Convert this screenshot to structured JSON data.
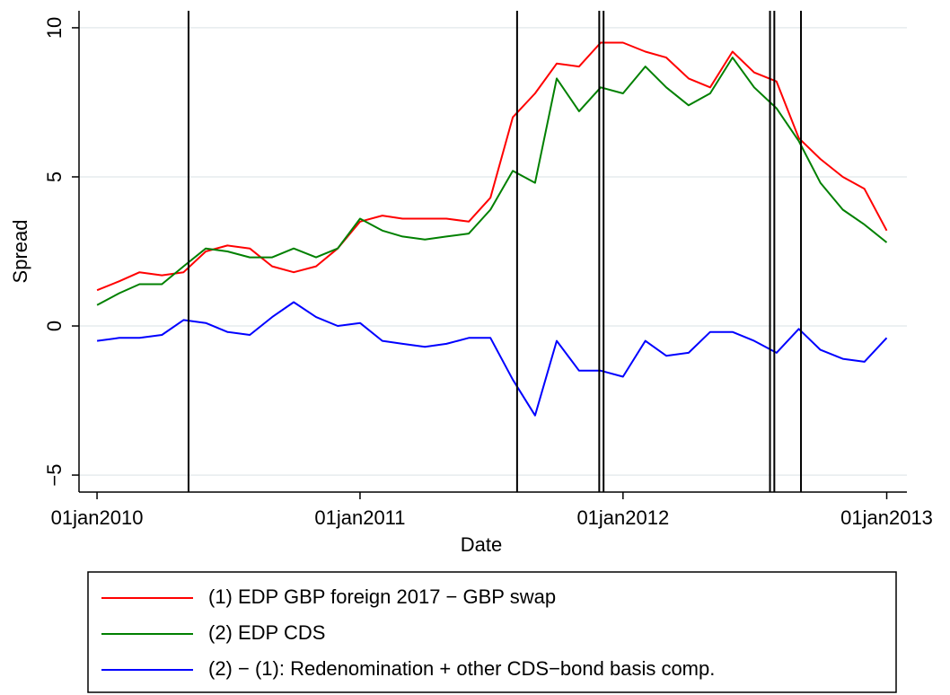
{
  "chart_data": {
    "type": "line",
    "x_label": "Date",
    "y_label": "Spread",
    "x": [
      "2010-01-01",
      "2010-02-01",
      "2010-03-01",
      "2010-04-01",
      "2010-05-01",
      "2010-06-01",
      "2010-07-01",
      "2010-08-01",
      "2010-09-01",
      "2010-10-01",
      "2010-11-01",
      "2010-12-01",
      "2011-01-01",
      "2011-02-01",
      "2011-03-01",
      "2011-04-01",
      "2011-05-01",
      "2011-06-01",
      "2011-07-01",
      "2011-08-01",
      "2011-09-01",
      "2011-10-01",
      "2011-11-01",
      "2011-12-01",
      "2012-01-01",
      "2012-02-01",
      "2012-03-01",
      "2012-04-01",
      "2012-05-01",
      "2012-06-01",
      "2012-07-01",
      "2012-08-01",
      "2012-09-01",
      "2012-10-01",
      "2012-11-01",
      "2012-12-01",
      "2013-01-01"
    ],
    "series": [
      {
        "name": "(1) EDP GBP foreign 2017 − GBP swap",
        "color": "#ff0000",
        "values": [
          1.2,
          1.5,
          1.8,
          1.7,
          1.8,
          2.5,
          2.7,
          2.6,
          2.0,
          1.8,
          2.0,
          2.6,
          3.5,
          3.7,
          3.6,
          3.6,
          3.6,
          3.5,
          4.3,
          7.0,
          7.8,
          8.8,
          8.7,
          9.5,
          9.5,
          9.2,
          9.0,
          8.3,
          8.0,
          9.2,
          8.5,
          8.2,
          6.3,
          5.6,
          5.0,
          4.6,
          3.2
        ]
      },
      {
        "name": "(2) EDP CDS",
        "color": "#008000",
        "values": [
          0.7,
          1.1,
          1.4,
          1.4,
          2.0,
          2.6,
          2.5,
          2.3,
          2.3,
          2.6,
          2.3,
          2.6,
          3.6,
          3.2,
          3.0,
          2.9,
          3.0,
          3.1,
          3.9,
          5.2,
          4.8,
          8.3,
          7.2,
          8.0,
          7.8,
          8.7,
          8.0,
          7.4,
          7.8,
          9.0,
          8.0,
          7.3,
          6.2,
          4.8,
          3.9,
          3.4,
          2.8
        ]
      },
      {
        "name": "(2) − (1): Redenomination + other CDS−bond basis comp.",
        "color": "#0000ff",
        "values": [
          -0.5,
          -0.4,
          -0.4,
          -0.3,
          0.2,
          0.1,
          -0.2,
          -0.3,
          0.3,
          0.8,
          0.3,
          0.0,
          0.1,
          -0.5,
          -0.6,
          -0.7,
          -0.6,
          -0.4,
          -0.4,
          -1.8,
          -3.0,
          -0.5,
          -1.5,
          -1.5,
          -1.7,
          -0.5,
          -1.0,
          -0.9,
          -0.2,
          -0.2,
          -0.5,
          -0.9,
          -0.1,
          -0.8,
          -1.1,
          -1.2,
          -0.4
        ]
      }
    ],
    "event_lines": [
      "2010-05-08",
      "2011-08-07",
      "2011-11-29",
      "2011-12-05",
      "2012-07-23",
      "2012-07-29",
      "2012-09-04"
    ],
    "event_line_color": "#000000",
    "xlim": [
      "2009-12-07",
      "2013-01-29"
    ],
    "xticks": [
      {
        "value": "2010-01-01",
        "label": "01jan2010"
      },
      {
        "value": "2011-01-01",
        "label": "01jan2011"
      },
      {
        "value": "2012-01-01",
        "label": "01jan2012"
      },
      {
        "value": "2013-01-01",
        "label": "01jan2013"
      }
    ],
    "ylim": [
      -5.57,
      10.57
    ],
    "yticks": [
      {
        "value": -5,
        "label": "−5"
      },
      0,
      5,
      10
    ],
    "grid": true,
    "legend": "bottom"
  }
}
